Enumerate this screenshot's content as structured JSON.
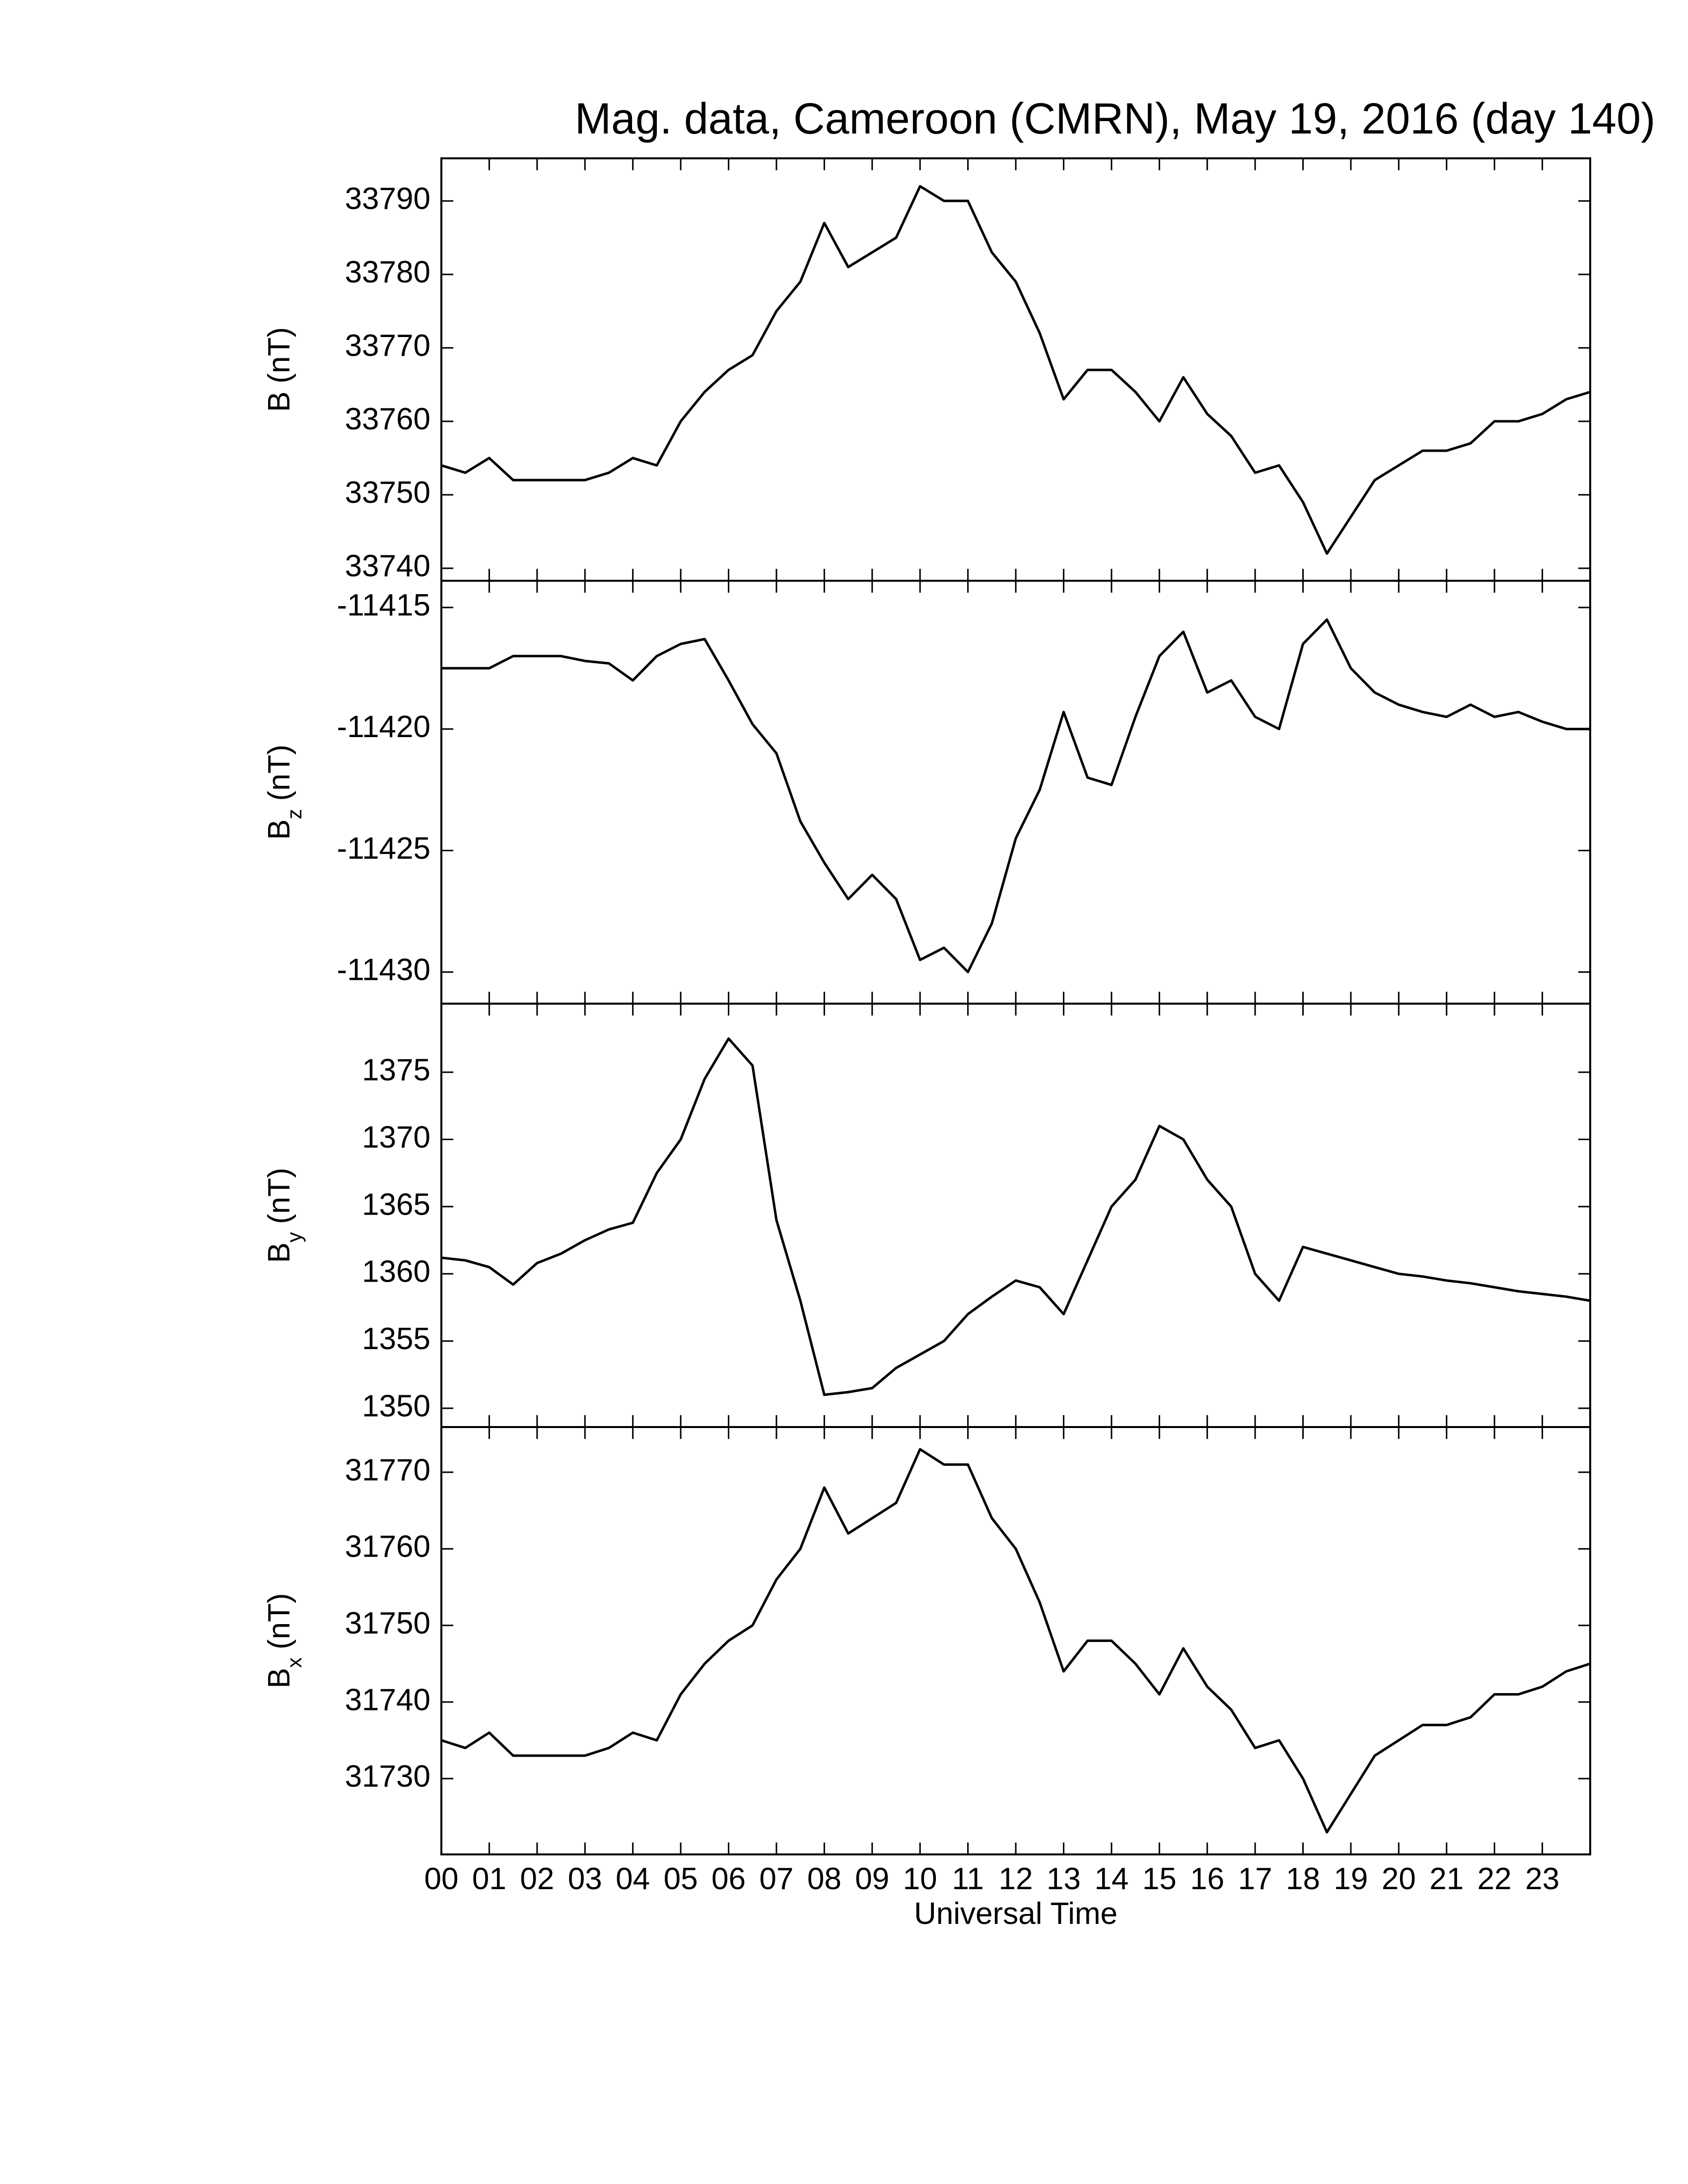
{
  "chart_data": [
    {
      "type": "line",
      "title": "Mag. data, Cameroon (CMRN), May 19, 2016 (day 140)",
      "ylabel": "B",
      "ylabel_unit": "(nT)",
      "color": "#000000",
      "x": [
        0,
        0.5,
        1,
        1.5,
        2,
        2.5,
        3,
        3.5,
        4,
        4.5,
        5,
        5.5,
        6,
        6.5,
        7,
        7.5,
        8,
        8.5,
        9,
        9.5,
        10,
        10.5,
        11,
        11.5,
        12,
        12.5,
        13,
        13.5,
        14,
        14.5,
        15,
        15.5,
        16,
        16.5,
        17,
        17.5,
        18,
        18.5,
        19,
        19.5,
        20,
        20.5,
        21,
        21.5,
        22,
        22.5,
        23,
        23.5,
        24
      ],
      "values": [
        33754,
        33753,
        33755,
        33752,
        33752,
        33752,
        33752,
        33753,
        33755,
        33754,
        33760,
        33764,
        33767,
        33769,
        33775,
        33779,
        33787,
        33781,
        33783,
        33785,
        33792,
        33790,
        33790,
        33783,
        33779,
        33772,
        33763,
        33767,
        33767,
        33764,
        33760,
        33766,
        33761,
        33758,
        33753,
        33754,
        33749,
        33742,
        33747,
        33752,
        33754,
        33756,
        33756,
        33757,
        33760,
        33760,
        33761,
        33763,
        33764
      ],
      "xlim": [
        0,
        24
      ],
      "ylim": [
        33738.3,
        33795.8
      ],
      "yticks": [
        33740,
        33750,
        33760,
        33770,
        33780,
        33790
      ]
    },
    {
      "type": "line",
      "ylabel": "B",
      "ylabel_sub": "z",
      "ylabel_unit": "(nT)",
      "color": "#000000",
      "x": [
        0,
        0.5,
        1,
        1.5,
        2,
        2.5,
        3,
        3.5,
        4,
        4.5,
        5,
        5.5,
        6,
        6.5,
        7,
        7.5,
        8,
        8.5,
        9,
        9.5,
        10,
        10.5,
        11,
        11.5,
        12,
        12.5,
        13,
        13.5,
        14,
        14.5,
        15,
        15.5,
        16,
        16.5,
        17,
        17.5,
        18,
        18.5,
        19,
        19.5,
        20,
        20.5,
        21,
        21.5,
        22,
        22.5,
        23,
        23.5,
        24
      ],
      "values": [
        -11417.5,
        -11417.5,
        -11417.5,
        -11417,
        -11417,
        -11417,
        -11417.2,
        -11417.3,
        -11418,
        -11417,
        -11416.5,
        -11416.3,
        -11418,
        -11419.8,
        -11421,
        -11423.8,
        -11425.5,
        -11427,
        -11426,
        -11427,
        -11429.5,
        -11429,
        -11430,
        -11428,
        -11424.5,
        -11422.5,
        -11419.3,
        -11422,
        -11422.3,
        -11419.5,
        -11417,
        -11416,
        -11418.5,
        -11418,
        -11419.5,
        -11420,
        -11416.5,
        -11415.5,
        -11417.5,
        -11418.5,
        -11419,
        -11419.3,
        -11419.5,
        -11419,
        -11419.5,
        -11419.3,
        -11419.7,
        -11420,
        -11420
      ],
      "xlim": [
        0,
        24
      ],
      "ylim": [
        -11431.3,
        -11413.9
      ],
      "yticks": [
        -11430,
        -11425,
        -11420,
        -11415
      ]
    },
    {
      "type": "line",
      "ylabel": "B",
      "ylabel_sub": "y",
      "ylabel_unit": "(nT)",
      "color": "#000000",
      "x": [
        0,
        0.5,
        1,
        1.5,
        2,
        2.5,
        3,
        3.5,
        4,
        4.5,
        5,
        5.5,
        6,
        6.5,
        7,
        7.5,
        8,
        8.5,
        9,
        9.5,
        10,
        10.5,
        11,
        11.5,
        12,
        12.5,
        13,
        13.5,
        14,
        14.5,
        15,
        15.5,
        16,
        16.5,
        17,
        17.5,
        18,
        18.5,
        19,
        19.5,
        20,
        20.5,
        21,
        21.5,
        22,
        22.5,
        23,
        23.5,
        24
      ],
      "values": [
        1361.2,
        1361,
        1360.5,
        1359.2,
        1360.8,
        1361.5,
        1362.5,
        1363.3,
        1363.8,
        1367.5,
        1370,
        1374.5,
        1377.5,
        1375.5,
        1364,
        1358,
        1351,
        1351.2,
        1351.5,
        1353,
        1354,
        1355,
        1357,
        1358.3,
        1359.5,
        1359,
        1357,
        1361,
        1365,
        1367,
        1371,
        1370,
        1367,
        1365,
        1360,
        1358,
        1362,
        1361.5,
        1361,
        1360.5,
        1360,
        1359.8,
        1359.5,
        1359.3,
        1359,
        1358.7,
        1358.5,
        1358.3,
        1358
      ],
      "xlim": [
        0,
        24
      ],
      "ylim": [
        1348.6,
        1380.1
      ],
      "yticks": [
        1350,
        1355,
        1360,
        1365,
        1370,
        1375
      ]
    },
    {
      "type": "line",
      "ylabel": "B",
      "ylabel_sub": "x",
      "ylabel_unit": "(nT)",
      "color": "#000000",
      "x": [
        0,
        0.5,
        1,
        1.5,
        2,
        2.5,
        3,
        3.5,
        4,
        4.5,
        5,
        5.5,
        6,
        6.5,
        7,
        7.5,
        8,
        8.5,
        9,
        9.5,
        10,
        10.5,
        11,
        11.5,
        12,
        12.5,
        13,
        13.5,
        14,
        14.5,
        15,
        15.5,
        16,
        16.5,
        17,
        17.5,
        18,
        18.5,
        19,
        19.5,
        20,
        20.5,
        21,
        21.5,
        22,
        22.5,
        23,
        23.5,
        24
      ],
      "values": [
        31735,
        31734,
        31736,
        31733,
        31733,
        31733,
        31733,
        31734,
        31736,
        31735,
        31741,
        31745,
        31748,
        31750,
        31756,
        31760,
        31768,
        31762,
        31764,
        31766,
        31773,
        31771,
        31771,
        31764,
        31760,
        31753,
        31744,
        31748,
        31748,
        31745,
        31741,
        31747,
        31742,
        31739,
        31734,
        31735,
        31730,
        31723,
        31728,
        31733,
        31735,
        31737,
        31737,
        31738,
        31741,
        31741,
        31742,
        31744,
        31745
      ],
      "xlim": [
        0,
        24
      ],
      "ylim": [
        31720.1,
        31775.9
      ],
      "yticks": [
        31730,
        31740,
        31750,
        31760,
        31770
      ],
      "xlabel": "Universal Time",
      "xticks": [
        {
          "value": 0,
          "label": "00"
        },
        {
          "value": 1,
          "label": "01"
        },
        {
          "value": 2,
          "label": "02"
        },
        {
          "value": 3,
          "label": "03"
        },
        {
          "value": 4,
          "label": "04"
        },
        {
          "value": 5,
          "label": "05"
        },
        {
          "value": 6,
          "label": "06"
        },
        {
          "value": 7,
          "label": "07"
        },
        {
          "value": 8,
          "label": "08"
        },
        {
          "value": 9,
          "label": "09"
        },
        {
          "value": 10,
          "label": "10"
        },
        {
          "value": 11,
          "label": "11"
        },
        {
          "value": 12,
          "label": "12"
        },
        {
          "value": 13,
          "label": "13"
        },
        {
          "value": 14,
          "label": "14"
        },
        {
          "value": 15,
          "label": "15"
        },
        {
          "value": 16,
          "label": "16"
        },
        {
          "value": 17,
          "label": "17"
        },
        {
          "value": 18,
          "label": "18"
        },
        {
          "value": 19,
          "label": "19"
        },
        {
          "value": 20,
          "label": "20"
        },
        {
          "value": 21,
          "label": "21"
        },
        {
          "value": 22,
          "label": "22"
        },
        {
          "value": 23,
          "label": "23"
        }
      ]
    }
  ]
}
